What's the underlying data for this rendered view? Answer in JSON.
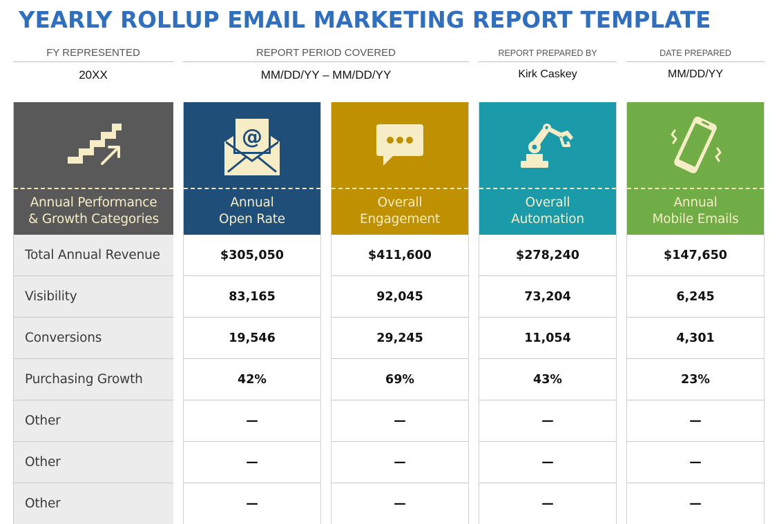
{
  "title": "YEARLY ROLLUP EMAIL MARKETING REPORT TEMPLATE",
  "meta": {
    "fy_label": "FY REPRESENTED",
    "fy_value": "20XX",
    "period_label": "REPORT PERIOD COVERED",
    "period_value": "MM/DD/YY – MM/DD/YY",
    "prepared_by_label": "REPORT PREPARED BY",
    "prepared_by_value": "Kirk Caskey",
    "date_label": "DATE PREPARED",
    "date_value": "MM/DD/YY"
  },
  "categories": {
    "header_line1": "Annual Performance",
    "header_line2": "& Growth Categories",
    "icon": "stairs-growth-icon",
    "color": "#595959",
    "rows": [
      "Total Annual Revenue",
      "Visibility",
      "Conversions",
      "Purchasing Growth",
      "Other",
      "Other",
      "Other"
    ]
  },
  "columns": [
    {
      "line1": "Annual",
      "line2": "Open Rate",
      "icon": "envelope-at-icon",
      "color": "#1f4e79",
      "values": [
        "$305,050",
        "83,165",
        "19,546",
        "42%",
        "—",
        "—",
        "—"
      ]
    },
    {
      "line1": "Overall",
      "line2": "Engagement",
      "icon": "chat-bubble-icon",
      "color": "#bf9000",
      "values": [
        "$411,600",
        "92,045",
        "29,245",
        "69%",
        "—",
        "—",
        "—"
      ]
    },
    {
      "line1": "Overall",
      "line2": "Automation",
      "icon": "robot-arm-icon",
      "color": "#1b9aaa",
      "values": [
        "$278,240",
        "73,204",
        "11,054",
        "43%",
        "—",
        "—",
        "—"
      ]
    },
    {
      "line1": "Annual",
      "line2": "Mobile Emails",
      "icon": "vibrating-phone-icon",
      "color": "#70ad47",
      "values": [
        "$147,650",
        "6,245",
        "4,301",
        "23%",
        "—",
        "—",
        "—"
      ]
    }
  ]
}
